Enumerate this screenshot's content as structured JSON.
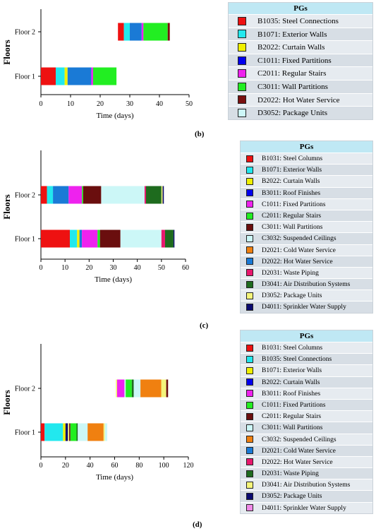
{
  "charts": [
    {
      "id": "b",
      "panel_label": "(b)",
      "legend_title": "PGs",
      "chart_data": {
        "type": "bar",
        "orientation": "horizontal-stacked",
        "xlabel": "Time (days)",
        "ylabel": "Floors",
        "xlim": [
          0,
          50
        ],
        "xticks": [
          "0",
          "10",
          "20",
          "30",
          "40",
          "50"
        ],
        "categories": [
          "Floor 1",
          "Floor 2"
        ],
        "legend": [
          {
            "name": "B1035: Steel Connections",
            "color": "#ee1111"
          },
          {
            "name": "B1071: Exterior Walls",
            "color": "#22e8ee"
          },
          {
            "name": "B2022: Curtain Walls",
            "color": "#f0f000"
          },
          {
            "name": "C1011: Fixed Partitions",
            "color": "#0000ee"
          },
          {
            "name": "C2011: Regular Stairs",
            "color": "#ee22ee"
          },
          {
            "name": "C3011: Wall Partitions",
            "color": "#22ee22"
          },
          {
            "name": "D2022: Hot Water Service",
            "color": "#7a1010"
          },
          {
            "name": "D3052: Package Units",
            "color": "#ccf7f7"
          }
        ],
        "series": [
          {
            "category": "Floor 1",
            "segments": [
              {
                "start": 0,
                "end": 5,
                "color": "#ee1111"
              },
              {
                "start": 5,
                "end": 8,
                "color": "#22e8ee"
              },
              {
                "start": 8,
                "end": 9,
                "color": "#f0f000"
              },
              {
                "start": 9,
                "end": 17,
                "color": "#1a7ad6"
              },
              {
                "start": 17,
                "end": 17.6,
                "color": "#ee22ee"
              },
              {
                "start": 17.6,
                "end": 25.5,
                "color": "#22ee22"
              }
            ]
          },
          {
            "category": "Floor 2",
            "segments": [
              {
                "start": 26,
                "end": 28,
                "color": "#ee1111"
              },
              {
                "start": 28,
                "end": 30,
                "color": "#22e8ee"
              },
              {
                "start": 30,
                "end": 34,
                "color": "#1a7ad6"
              },
              {
                "start": 34,
                "end": 34.6,
                "color": "#ee22ee"
              },
              {
                "start": 34.6,
                "end": 42.8,
                "color": "#22ee22"
              },
              {
                "start": 42.8,
                "end": 43.5,
                "color": "#7a1010"
              }
            ]
          }
        ]
      }
    },
    {
      "id": "c",
      "panel_label": "(c)",
      "legend_title": "PGs",
      "chart_data": {
        "type": "bar",
        "orientation": "horizontal-stacked",
        "xlabel": "Time (days)",
        "ylabel": "Floors",
        "xlim": [
          0,
          60
        ],
        "xticks": [
          "0",
          "10",
          "20",
          "30",
          "40",
          "50",
          "60"
        ],
        "categories": [
          "Floor 1",
          "Floor 2"
        ],
        "legend": [
          {
            "name": "B1031: Steel Columns",
            "color": "#ee1111"
          },
          {
            "name": "B1071: Exterior Walls",
            "color": "#22e8ee"
          },
          {
            "name": "B2022: Curtain Walls",
            "color": "#f0f000"
          },
          {
            "name": "B3011: Roof Finishes",
            "color": "#0000ee"
          },
          {
            "name": "C1011: Fixed Partitions",
            "color": "#ee22ee"
          },
          {
            "name": "C2011: Regular Stairs",
            "color": "#22ee22"
          },
          {
            "name": "C3011: Wall Partitions",
            "color": "#6a0e0e"
          },
          {
            "name": "C3032: Suspended Ceilings",
            "color": "#ccf7f7"
          },
          {
            "name": "D2021: Cold Water Service",
            "color": "#f08010"
          },
          {
            "name": "D2022: Hot Water Service",
            "color": "#1a7ad6"
          },
          {
            "name": "D2031: Waste Piping",
            "color": "#e8186e"
          },
          {
            "name": "D3041: Air Distribution Systems",
            "color": "#1e6b1e"
          },
          {
            "name": "D3052: Package Units",
            "color": "#f4f47a"
          },
          {
            "name": "D4011: Sprinkler Water Supply",
            "color": "#0a0a70"
          }
        ],
        "series": [
          {
            "category": "Floor 1",
            "segments": [
              {
                "start": 0,
                "end": 12,
                "color": "#ee1111"
              },
              {
                "start": 12,
                "end": 15,
                "color": "#22e8ee"
              },
              {
                "start": 15,
                "end": 16,
                "color": "#f0f000"
              },
              {
                "start": 16,
                "end": 17,
                "color": "#1a7ad6"
              },
              {
                "start": 17,
                "end": 23.5,
                "color": "#ee22ee"
              },
              {
                "start": 23.5,
                "end": 24.5,
                "color": "#22ee22"
              },
              {
                "start": 24.5,
                "end": 33,
                "color": "#6a0e0e"
              },
              {
                "start": 33,
                "end": 50,
                "color": "#ccf7f7"
              },
              {
                "start": 50,
                "end": 51.5,
                "color": "#e8186e"
              },
              {
                "start": 51.5,
                "end": 55,
                "color": "#1e6b1e"
              },
              {
                "start": 55,
                "end": 55.4,
                "color": "#0a0a70"
              }
            ]
          },
          {
            "category": "Floor 2",
            "segments": [
              {
                "start": 0,
                "end": 2.5,
                "color": "#ee1111"
              },
              {
                "start": 2.5,
                "end": 5,
                "color": "#22e8ee"
              },
              {
                "start": 5,
                "end": 11.5,
                "color": "#1a7ad6"
              },
              {
                "start": 11.5,
                "end": 17,
                "color": "#ee22ee"
              },
              {
                "start": 17,
                "end": 17.5,
                "color": "#22ee22"
              },
              {
                "start": 17.5,
                "end": 25,
                "color": "#6a0e0e"
              },
              {
                "start": 25,
                "end": 43,
                "color": "#ccf7f7"
              },
              {
                "start": 43,
                "end": 43.6,
                "color": "#e8186e"
              },
              {
                "start": 43.6,
                "end": 50,
                "color": "#1e6b1e"
              },
              {
                "start": 50,
                "end": 50.5,
                "color": "#f4f47a"
              },
              {
                "start": 50.5,
                "end": 51,
                "color": "#0a0a70"
              }
            ]
          }
        ]
      }
    },
    {
      "id": "d",
      "panel_label": "(d)",
      "legend_title": "PGs",
      "chart_data": {
        "type": "bar",
        "orientation": "horizontal-stacked",
        "xlabel": "Time (days)",
        "ylabel": "Floors",
        "xlim": [
          0,
          120
        ],
        "xticks": [
          "0",
          "20",
          "40",
          "60",
          "80",
          "100",
          "120"
        ],
        "categories": [
          "Floor 1",
          "Floor 2"
        ],
        "legend": [
          {
            "name": "B1031: Steel Columns",
            "color": "#ee1111"
          },
          {
            "name": "B1035: Steel Connections",
            "color": "#22e8ee"
          },
          {
            "name": "B1071: Exterior Walls",
            "color": "#f0f000"
          },
          {
            "name": "B2022: Curtain Walls",
            "color": "#0000ee"
          },
          {
            "name": "B3011: Roof Finishes",
            "color": "#ee22ee"
          },
          {
            "name": "C1011: Fixed Partitions",
            "color": "#22ee22"
          },
          {
            "name": "C2011: Regular Stairs",
            "color": "#6a0e0e"
          },
          {
            "name": "C3011: Wall Partitions",
            "color": "#ccf7f7"
          },
          {
            "name": "C3032: Suspended Ceilings",
            "color": "#f08010"
          },
          {
            "name": "D2021: Cold Water Service",
            "color": "#1a7ad6"
          },
          {
            "name": "D2022: Hot Water Service",
            "color": "#e8186e"
          },
          {
            "name": "D2031: Waste Piping",
            "color": "#1e6b1e"
          },
          {
            "name": "D3041: Air Distribution Systems",
            "color": "#f4f47a"
          },
          {
            "name": "D3052: Package Units",
            "color": "#0a0a70"
          },
          {
            "name": "D4011: Sprinkler Water Supply",
            "color": "#f08ae8"
          }
        ],
        "series": [
          {
            "category": "Floor 1",
            "segments": [
              {
                "start": 0,
                "end": 3,
                "color": "#ee1111"
              },
              {
                "start": 3,
                "end": 18,
                "color": "#22e8ee"
              },
              {
                "start": 18,
                "end": 20,
                "color": "#f0f000"
              },
              {
                "start": 20,
                "end": 22,
                "color": "#0a0a70"
              },
              {
                "start": 22,
                "end": 23,
                "color": "#f4f47a"
              },
              {
                "start": 23,
                "end": 24,
                "color": "#6a0e0e"
              },
              {
                "start": 24,
                "end": 29,
                "color": "#22ee22"
              },
              {
                "start": 29,
                "end": 30,
                "color": "#1e6b1e"
              },
              {
                "start": 30,
                "end": 38,
                "color": "#ccf7f7"
              },
              {
                "start": 38,
                "end": 51,
                "color": "#f08010"
              },
              {
                "start": 51,
                "end": 52,
                "color": "#f4f47a"
              },
              {
                "start": 52,
                "end": 54,
                "color": "#ccf7f7"
              }
            ]
          },
          {
            "category": "Floor 2",
            "segments": [
              {
                "start": 61,
                "end": 62,
                "color": "#f4f47a"
              },
              {
                "start": 62,
                "end": 68,
                "color": "#ee22ee"
              },
              {
                "start": 68,
                "end": 69,
                "color": "#ccf7f7"
              },
              {
                "start": 69,
                "end": 74,
                "color": "#22ee22"
              },
              {
                "start": 74,
                "end": 75.5,
                "color": "#1e6b1e"
              },
              {
                "start": 75.5,
                "end": 81,
                "color": "#ccf7f7"
              },
              {
                "start": 81,
                "end": 98,
                "color": "#f08010"
              },
              {
                "start": 98,
                "end": 102,
                "color": "#f4f47a"
              },
              {
                "start": 102,
                "end": 103.5,
                "color": "#6a0e0e"
              }
            ]
          }
        ]
      }
    }
  ]
}
